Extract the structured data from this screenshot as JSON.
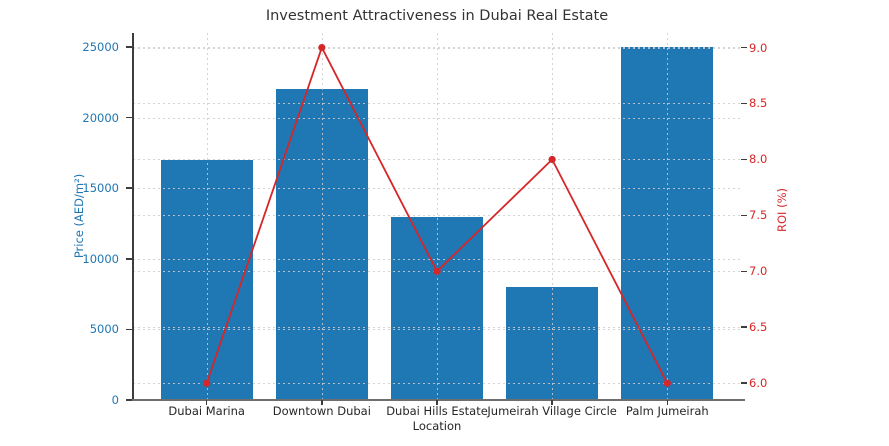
{
  "chart_data": {
    "type": "bar",
    "title": "Investment Attractiveness in Dubai Real Estate",
    "xlabel": "Location",
    "ylabel_left": "Price (AED/m²)",
    "ylabel_right": "ROI (%)",
    "categories": [
      "Dubai Marina",
      "Downtown Dubai",
      "Dubai Hills Estate",
      "Jumeirah Village Circle",
      "Palm Jumeirah"
    ],
    "series": [
      {
        "name": "Price (AED/m²)",
        "type": "bar",
        "axis": "left",
        "values": [
          17000,
          22000,
          13000,
          8000,
          25000
        ]
      },
      {
        "name": "ROI (%)",
        "type": "line",
        "axis": "right",
        "values": [
          6.0,
          9.0,
          7.0,
          8.0,
          6.0
        ]
      }
    ],
    "ylim_left": [
      0,
      26000
    ],
    "ylim_right": [
      5.85,
      9.13
    ],
    "yticks_left": [
      0,
      5000,
      10000,
      15000,
      20000,
      25000
    ],
    "yticks_right": [
      6.0,
      6.5,
      7.0,
      7.5,
      8.0,
      8.5,
      9.0
    ],
    "grid": true,
    "legend": "none",
    "colors": {
      "bar": "#1f77b4",
      "line": "#d62728",
      "left_axis": "#1f77b4",
      "right_axis": "#d62728",
      "x_axis_text": "#262626",
      "title_text": "#333333"
    }
  }
}
